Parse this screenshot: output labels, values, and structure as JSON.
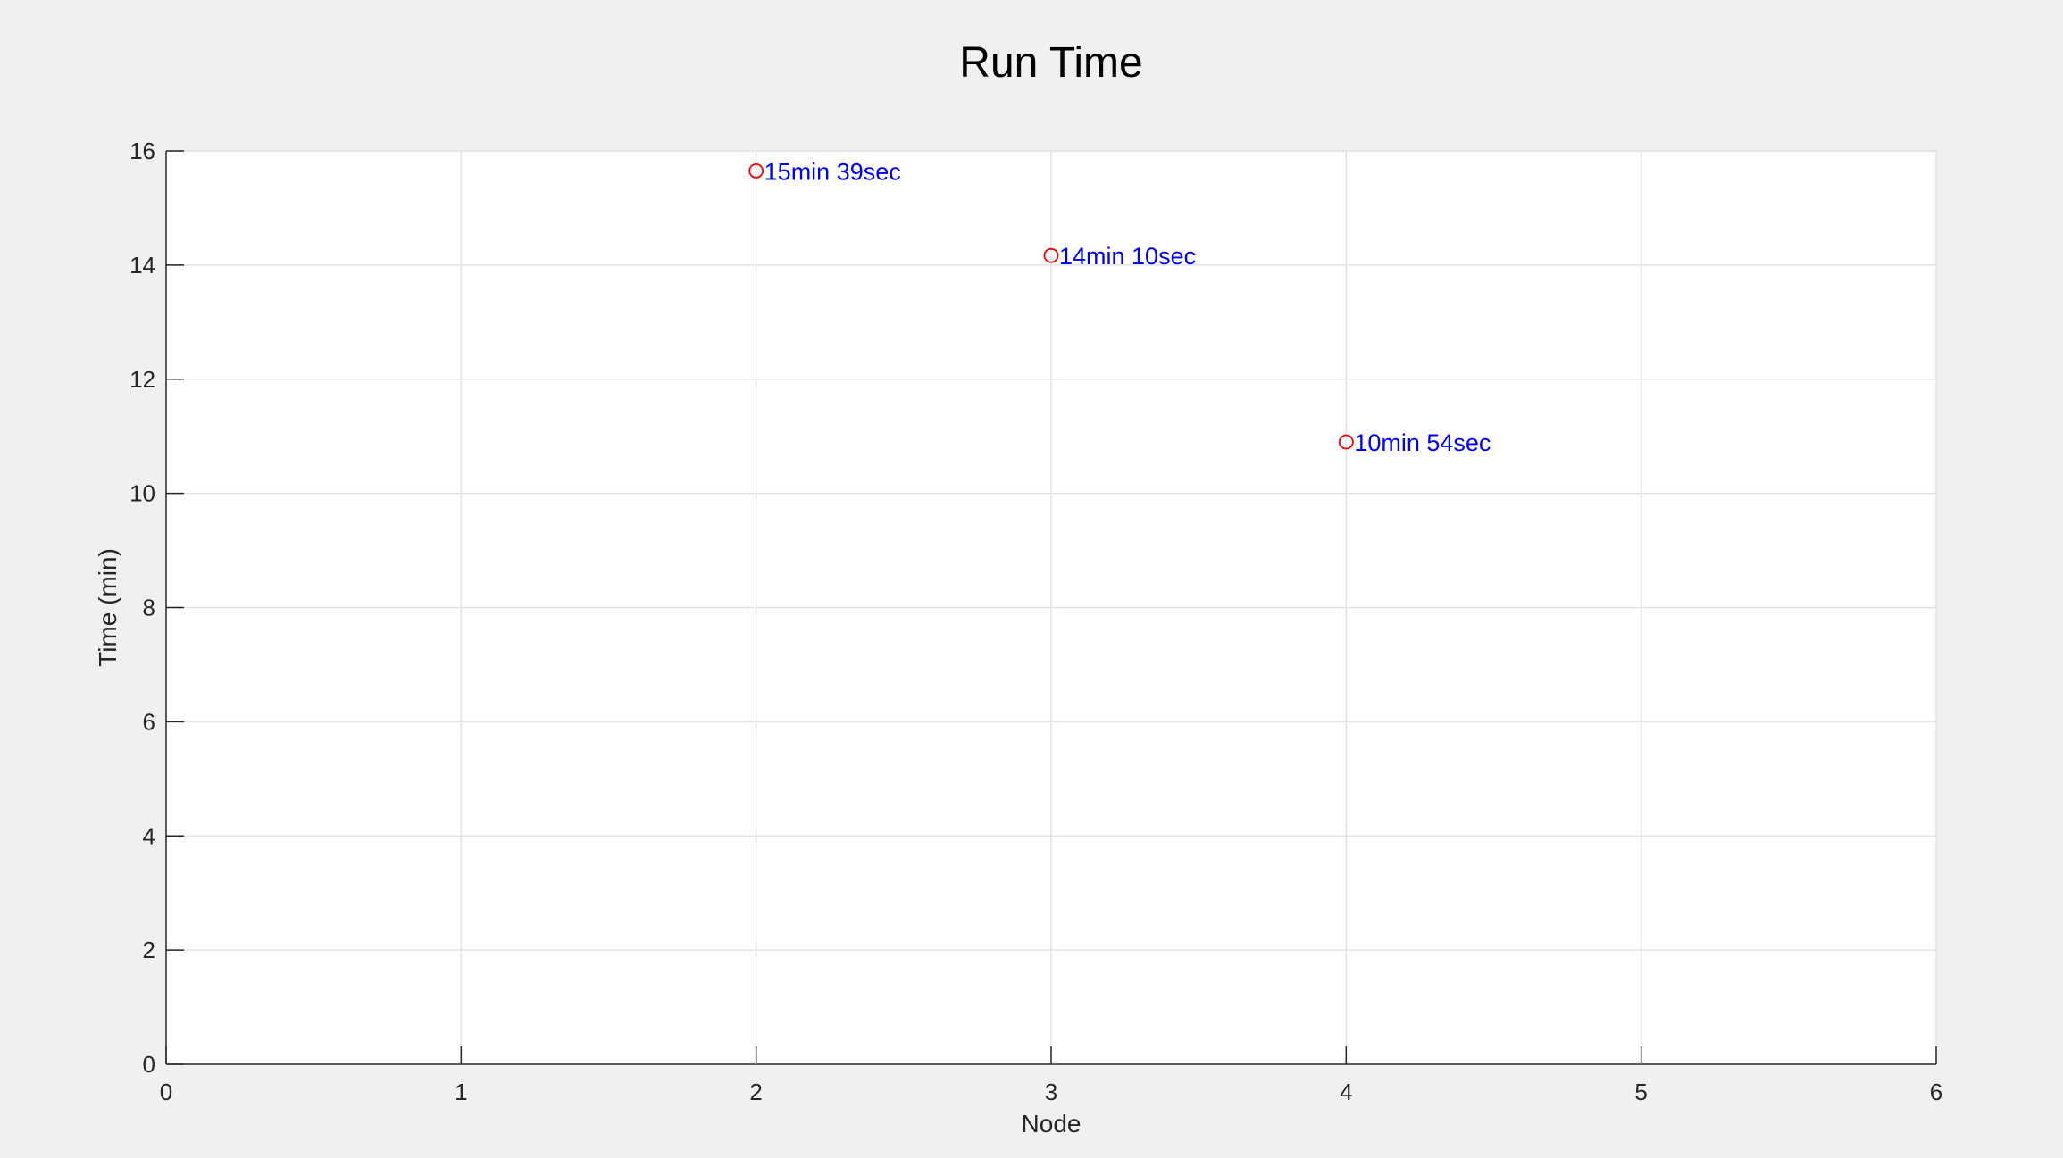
{
  "chart_data": {
    "type": "scatter",
    "title": "Run Time",
    "xlabel": "Node",
    "ylabel": "Time (min)",
    "xlim": [
      0,
      6
    ],
    "ylim": [
      0,
      16
    ],
    "xticks": [
      0,
      1,
      2,
      3,
      4,
      5,
      6
    ],
    "yticks": [
      0,
      2,
      4,
      6,
      8,
      10,
      12,
      14,
      16
    ],
    "grid": true,
    "points": [
      {
        "x": 2,
        "y": 15.65,
        "label": "15min 39sec"
      },
      {
        "x": 3,
        "y": 14.1667,
        "label": "14min 10sec"
      },
      {
        "x": 4,
        "y": 10.9,
        "label": "10min 54sec"
      }
    ],
    "marker": "circle",
    "marker_color": "#ff0000",
    "label_color": "#0000ff",
    "grid_color": "#e3e3e3",
    "axis_color": "#262626",
    "plot_background": "#ffffff",
    "figure_background": "#f0f0f0"
  }
}
